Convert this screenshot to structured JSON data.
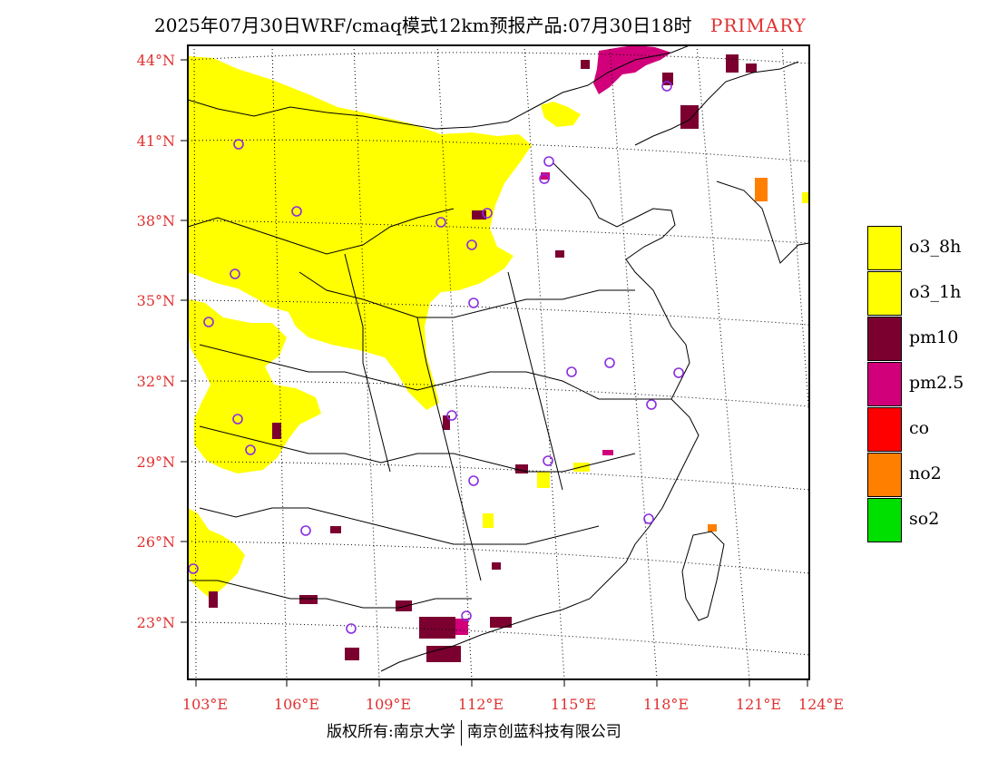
{
  "header": {
    "title": "2025年07月30日WRF/cmaq模式12km预报产品:07月30日18时",
    "mode": "PRIMARY"
  },
  "map": {
    "lat_labels": [
      "44°N",
      "41°N",
      "38°N",
      "35°N",
      "32°N",
      "29°N",
      "26°N",
      "23°N"
    ],
    "lon_labels": [
      "103°E",
      "106°E",
      "109°E",
      "112°E",
      "115°E",
      "118°E",
      "121°E",
      "124°E"
    ],
    "axis_label_color": "#e03030",
    "extent": {
      "lon": [
        102.8,
        124
      ],
      "lat": [
        21.9,
        44.4
      ]
    }
  },
  "legend": {
    "items": [
      {
        "label": "o3_8h",
        "color": "#ffff00"
      },
      {
        "label": "o3_1h",
        "color": "#ffff00"
      },
      {
        "label": "pm10",
        "color": "#7b0030"
      },
      {
        "label": "pm2.5",
        "color": "#d1007a"
      },
      {
        "label": "co",
        "color": "#ff0000"
      },
      {
        "label": "no2",
        "color": "#ff7f00"
      },
      {
        "label": "so2",
        "color": "#00e000"
      }
    ]
  },
  "footer": {
    "copyright": "版权所有:南京大学",
    "company": "南京创蓝科技有限公司"
  }
}
